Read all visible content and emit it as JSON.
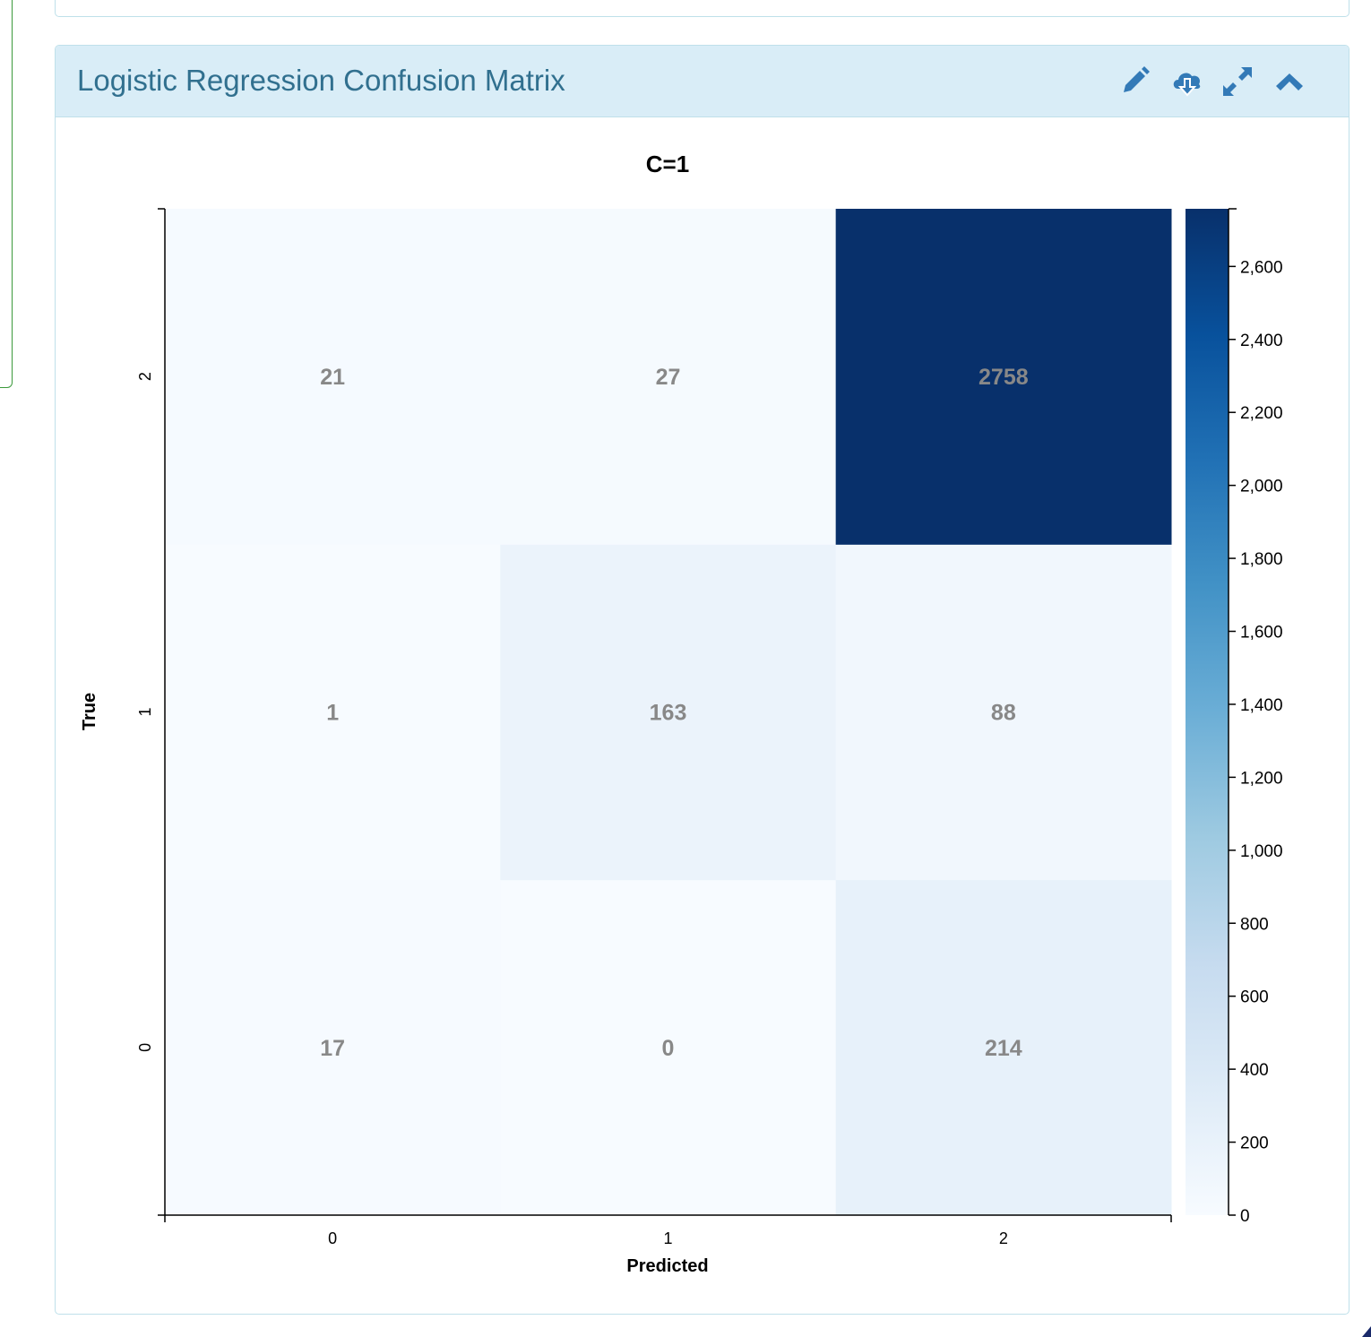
{
  "card": {
    "title": "Logistic Regression Confusion Matrix",
    "tools": [
      {
        "name": "edit-icon"
      },
      {
        "name": "cloud-download-icon"
      },
      {
        "name": "expand-icon"
      },
      {
        "name": "collapse-chevron-icon"
      }
    ]
  },
  "colors": {
    "header_bg": "#d9edf7",
    "title_text": "#31708f",
    "icon": "#337ab7",
    "cell_text": "#888888",
    "colormap": "Blues"
  },
  "chart_data": {
    "type": "heatmap",
    "title": "C=1",
    "xlabel": "Predicted",
    "ylabel": "True",
    "x_categories": [
      "0",
      "1",
      "2"
    ],
    "y_categories": [
      "0",
      "1",
      "2"
    ],
    "values": [
      [
        17,
        0,
        214
      ],
      [
        1,
        163,
        88
      ],
      [
        21,
        27,
        2758
      ]
    ],
    "colorbar": {
      "min": 0,
      "max": 2758,
      "ticks": [
        0,
        200,
        400,
        600,
        800,
        1000,
        1200,
        1400,
        1600,
        1800,
        2000,
        2200,
        2400,
        2600
      ],
      "tick_labels": [
        "0",
        "200",
        "400",
        "600",
        "800",
        "1,000",
        "1,200",
        "1,400",
        "1,600",
        "1,800",
        "2,000",
        "2,200",
        "2,400",
        "2,600"
      ]
    }
  }
}
